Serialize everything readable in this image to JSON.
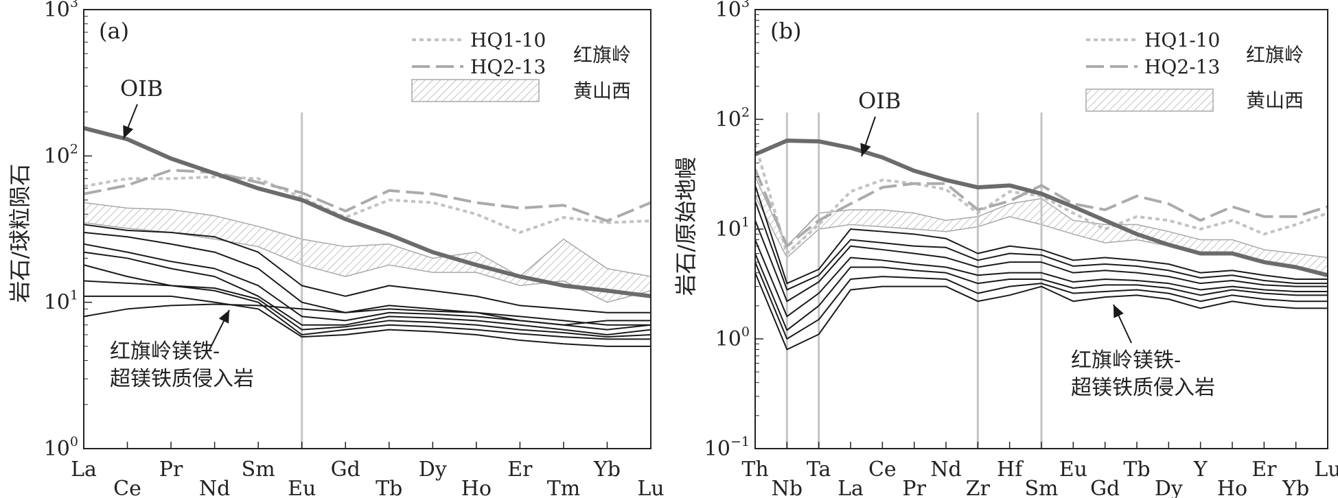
{
  "chart_data": [
    {
      "type": "line",
      "panel_label": "(a)",
      "ylabel": "岩石/球粒陨石",
      "y_scale": "log",
      "ylim": [
        1,
        1000
      ],
      "y_ticks": [
        {
          "value": 1,
          "base": "10",
          "exp": "0"
        },
        {
          "value": 10,
          "base": "10",
          "exp": "1"
        },
        {
          "value": 100,
          "base": "10",
          "exp": "2"
        },
        {
          "value": 1000,
          "base": "10",
          "exp": "3"
        }
      ],
      "categories": [
        "La",
        "Ce",
        "Pr",
        "Nd",
        "Sm",
        "Eu",
        "Gd",
        "Tb",
        "Dy",
        "Ho",
        "Er",
        "Tm",
        "Yb",
        "Lu"
      ],
      "vlines": [
        "Eu"
      ],
      "series": [
        {
          "name": "OIB",
          "style": "oib",
          "values": [
            155,
            130,
            96,
            76,
            60,
            50,
            37,
            29,
            22,
            18,
            15,
            13,
            12,
            11
          ]
        },
        {
          "name": "HQ1-10",
          "style": "dotted",
          "values": [
            62,
            70,
            70,
            72,
            70,
            52,
            38,
            50,
            48,
            40,
            30,
            38,
            35,
            36
          ]
        },
        {
          "name": "HQ2-13",
          "style": "dashed",
          "values": [
            55,
            63,
            80,
            77,
            66,
            56,
            42,
            58,
            55,
            48,
            44,
            46,
            36,
            48
          ]
        },
        {
          "style": "black",
          "values": [
            34,
            31,
            30,
            28,
            22,
            13,
            11,
            13,
            12,
            11,
            9.5,
            9,
            8.5,
            8.5
          ]
        },
        {
          "style": "black",
          "values": [
            30,
            28,
            25,
            22,
            17,
            10,
            8.5,
            9.5,
            9,
            8.5,
            8,
            7.5,
            7,
            7
          ]
        },
        {
          "style": "black",
          "values": [
            25,
            22,
            19,
            17,
            13,
            8,
            7.5,
            8.5,
            8.3,
            8,
            7.5,
            7,
            6.5,
            7
          ]
        },
        {
          "style": "black",
          "values": [
            22,
            20,
            17,
            15,
            11,
            7,
            7,
            8,
            7.8,
            7.5,
            7,
            6.5,
            6,
            6.5
          ]
        },
        {
          "style": "black",
          "values": [
            18,
            15,
            13,
            12.5,
            10.5,
            6.5,
            6.8,
            7.5,
            7.3,
            7,
            6.5,
            6.2,
            5.8,
            6
          ]
        },
        {
          "style": "black",
          "values": [
            14,
            13.5,
            13,
            12,
            10,
            6,
            6.5,
            7,
            6.8,
            6.5,
            6.1,
            5.8,
            5.6,
            5.6
          ]
        },
        {
          "style": "black",
          "values": [
            11,
            11,
            11,
            10,
            9,
            5.8,
            6,
            6.5,
            6.3,
            6,
            5.5,
            5.2,
            5,
            5
          ]
        },
        {
          "style": "black",
          "values": [
            8,
            9,
            9.5,
            9.7,
            9.5,
            9,
            8.5,
            9,
            8.7,
            8.5,
            7.5,
            7,
            7.5,
            7.5
          ]
        }
      ],
      "band": {
        "name": "黄山西",
        "upper": [
          48,
          44,
          43,
          39,
          33,
          27,
          24,
          25,
          20,
          22,
          15,
          27,
          17,
          15
        ],
        "lower": [
          35,
          32,
          30,
          27,
          24,
          18,
          15,
          18,
          16,
          16,
          13,
          14,
          10,
          12
        ]
      },
      "legend": {
        "items": [
          {
            "label": "HQ1-10",
            "style": "dotted"
          },
          {
            "label": "HQ2-13",
            "style": "dashed"
          }
        ],
        "group_label": "红旗岭",
        "band_label": "黄山西"
      },
      "annotations": {
        "oib": "OIB",
        "intrusion_lines": [
          "红旗岭镁铁-",
          "超镁铁质侵入岩"
        ]
      }
    },
    {
      "type": "line",
      "panel_label": "(b)",
      "ylabel": "岩石/原始地幔",
      "y_scale": "log",
      "ylim": [
        0.1,
        1000
      ],
      "y_ticks": [
        {
          "value": 0.1,
          "base": "10",
          "exp": "−1"
        },
        {
          "value": 1,
          "base": "10",
          "exp": "0"
        },
        {
          "value": 10,
          "base": "10",
          "exp": "1"
        },
        {
          "value": 100,
          "base": "10",
          "exp": "2"
        },
        {
          "value": 1000,
          "base": "10",
          "exp": "3"
        }
      ],
      "categories": [
        "Th",
        "Nb",
        "Ta",
        "La",
        "Ce",
        "Pr",
        "Nd",
        "Zr",
        "Hf",
        "Sm",
        "Eu",
        "Gd",
        "Tb",
        "Dy",
        "Y",
        "Ho",
        "Er",
        "Yb",
        "Lu"
      ],
      "vlines": [
        "Nb",
        "Ta",
        "Zr",
        "Sm"
      ],
      "series": [
        {
          "name": "OIB",
          "style": "oib",
          "values": [
            48,
            64,
            63,
            55,
            45,
            34,
            28,
            24,
            25,
            21,
            16,
            12,
            9,
            7.2,
            6,
            6,
            5,
            4.5,
            3.8
          ]
        },
        {
          "name": "HQ1-10",
          "style": "dotted",
          "values": [
            60,
            6,
            11,
            22,
            28,
            26,
            23,
            14,
            22,
            20,
            14,
            10,
            13,
            12,
            10,
            12,
            9,
            11,
            14
          ]
        },
        {
          "name": "HQ2-13",
          "style": "dashed",
          "values": [
            35,
            7,
            12,
            17,
            24,
            26,
            26,
            15,
            18,
            25,
            17,
            15,
            20,
            17,
            12,
            16,
            13,
            13,
            16
          ]
        },
        {
          "style": "black",
          "values": [
            25,
            3.2,
            4.3,
            10,
            9.5,
            9,
            8.2,
            6,
            7,
            6.5,
            5.2,
            5.5,
            5.2,
            4.8,
            4,
            4.2,
            3.8,
            3.5,
            3.5
          ]
        },
        {
          "style": "black",
          "values": [
            18,
            2.8,
            3.8,
            8,
            7.5,
            7,
            6.8,
            5.2,
            6,
            5.8,
            4.6,
            4.8,
            4.6,
            4.2,
            3.6,
            3.8,
            3.4,
            3.2,
            3.2
          ]
        },
        {
          "style": "black",
          "values": [
            12,
            2.2,
            3.3,
            7,
            6.5,
            6,
            5.5,
            4.5,
            5,
            5,
            4,
            4.2,
            4,
            3.7,
            3.2,
            3.4,
            3.1,
            3,
            3
          ]
        },
        {
          "style": "black",
          "values": [
            8,
            1.6,
            2.6,
            5.5,
            5.2,
            4.8,
            4.5,
            3.8,
            4,
            4,
            3.3,
            3.5,
            3.4,
            3.2,
            2.8,
            3,
            2.8,
            2.7,
            2.7
          ]
        },
        {
          "style": "black",
          "values": [
            6,
            1.2,
            2,
            4.5,
            4.5,
            4.2,
            4,
            3.2,
            3.5,
            3.5,
            2.9,
            3.1,
            3.1,
            2.9,
            2.5,
            2.8,
            2.6,
            2.5,
            2.5
          ]
        },
        {
          "style": "black",
          "values": [
            5,
            1.0,
            1.5,
            3.5,
            3.7,
            3.6,
            3.5,
            2.6,
            3,
            3.2,
            2.6,
            2.7,
            2.8,
            2.6,
            2.2,
            2.5,
            2.3,
            2.2,
            2.2
          ]
        },
        {
          "style": "black",
          "values": [
            4,
            0.8,
            1.1,
            2.8,
            3.0,
            3.0,
            3.0,
            2.2,
            2.5,
            3.0,
            2.2,
            2.4,
            2.5,
            2.3,
            1.9,
            2.2,
            2.0,
            1.9,
            1.9
          ]
        }
      ],
      "band": {
        "name": "黄山西",
        "upper": [
          30,
          7,
          14,
          15,
          15,
          14,
          12,
          13,
          17,
          19,
          12,
          11,
          11,
          9.5,
          8,
          8,
          6.5,
          6,
          5.5
        ],
        "lower": [
          20,
          5.5,
          10,
          11,
          10.5,
          10,
          9.5,
          10.5,
          13,
          11,
          9,
          7.5,
          8,
          7,
          6,
          6,
          5,
          4.5,
          3.8
        ]
      },
      "legend": {
        "items": [
          {
            "label": "HQ1-10",
            "style": "dotted"
          },
          {
            "label": "HQ2-13",
            "style": "dashed"
          }
        ],
        "group_label": "红旗岭",
        "band_label": "黄山西"
      },
      "annotations": {
        "oib": "OIB",
        "intrusion_lines": [
          "红旗岭镁铁-",
          "超镁铁质侵入岩"
        ]
      }
    }
  ]
}
